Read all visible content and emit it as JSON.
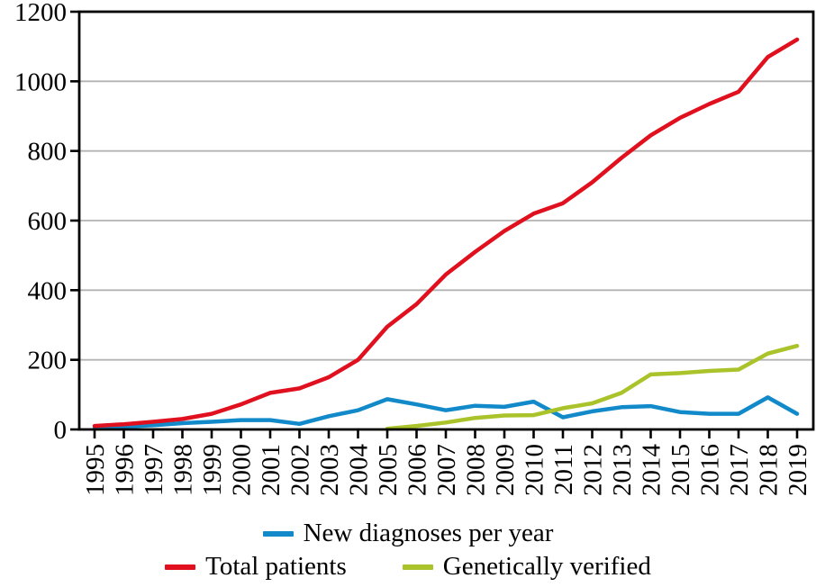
{
  "chart_data": {
    "type": "line",
    "title": "",
    "xlabel": "",
    "ylabel": "",
    "x": [
      1995,
      1996,
      1997,
      1998,
      1999,
      2000,
      2001,
      2002,
      2003,
      2004,
      2005,
      2006,
      2007,
      2008,
      2009,
      2010,
      2011,
      2012,
      2013,
      2014,
      2015,
      2016,
      2017,
      2018,
      2019
    ],
    "y_ticks": [
      0,
      200,
      400,
      600,
      800,
      1000,
      1200
    ],
    "ylim": [
      0,
      1200
    ],
    "grid": true,
    "legend_position": "bottom",
    "series": [
      {
        "name": "New diagnoses per year",
        "color": "#128aca",
        "values": [
          3,
          8,
          12,
          18,
          22,
          27,
          27,
          16,
          38,
          55,
          87,
          72,
          55,
          68,
          65,
          80,
          35,
          52,
          64,
          67,
          50,
          45,
          45,
          92,
          45
        ]
      },
      {
        "name": "Total patients",
        "color": "#e0101e",
        "values": [
          10,
          15,
          22,
          30,
          45,
          72,
          105,
          118,
          150,
          200,
          295,
          360,
          445,
          510,
          570,
          620,
          650,
          710,
          780,
          845,
          895,
          935,
          970,
          1070,
          1120
        ]
      },
      {
        "name": "Genetically verified",
        "color": "#abc32a",
        "values": [
          null,
          null,
          null,
          null,
          null,
          null,
          null,
          null,
          null,
          null,
          2,
          10,
          20,
          33,
          40,
          41,
          61,
          75,
          105,
          158,
          162,
          168,
          172,
          218,
          240
        ]
      }
    ]
  },
  "colors": {
    "axis": "#000000",
    "grid": "#b3b3b3",
    "background": "#ffffff"
  }
}
